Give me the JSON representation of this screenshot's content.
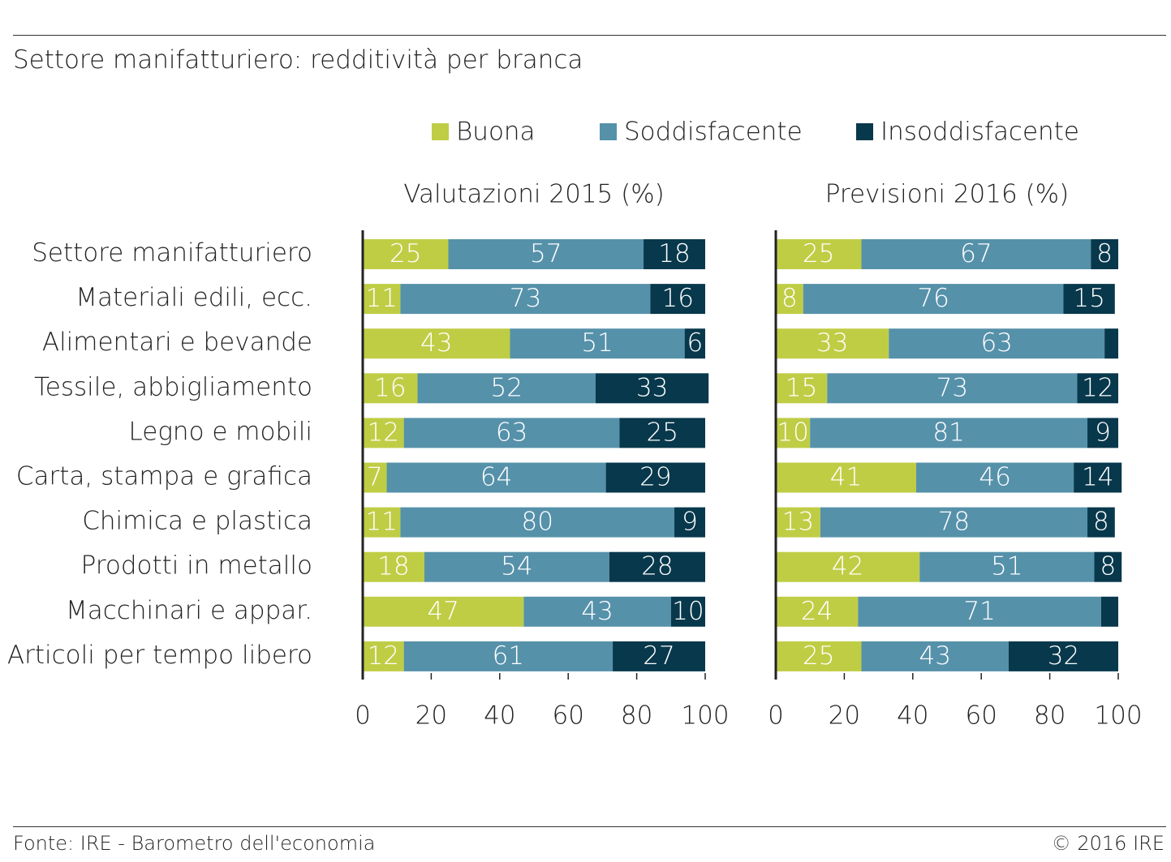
{
  "title": "Settore manifatturiero: redditività per branca",
  "footer": {
    "source": "Fonte: IRE - Barometro dell'economia",
    "copyright": "© 2016 IRE"
  },
  "colors": {
    "Buona": "#bfcd45",
    "Soddisfacente": "#5691aa",
    "Insoddisfacente": "#08384c"
  },
  "chart_data": {
    "type": "bar",
    "orientation": "horizontal",
    "stacked": true,
    "legend": [
      "Buona",
      "Soddisfacente",
      "Insoddisfacente"
    ],
    "legend_position": "top",
    "categories": [
      "Settore manifatturiero",
      "Materiali edili, ecc.",
      "Alimentari e bevande",
      "Tessile, abbigliamento",
      "Legno e mobili",
      "Carta, stampa e grafica",
      "Chimica e plastica",
      "Prodotti in metallo",
      "Macchinari e appar.",
      "Articoli per tempo libero"
    ],
    "panels": [
      {
        "title": "Valutazioni 2015 (%)",
        "xlim": [
          0,
          100
        ],
        "xticks": [
          0,
          20,
          40,
          60,
          80,
          100
        ],
        "series": [
          {
            "name": "Buona",
            "values": [
              25,
              11,
              43,
              16,
              12,
              7,
              11,
              18,
              47,
              12
            ]
          },
          {
            "name": "Soddisfacente",
            "values": [
              57,
              73,
              51,
              52,
              63,
              64,
              80,
              54,
              43,
              61
            ]
          },
          {
            "name": "Insoddisfacente",
            "values": [
              18,
              16,
              6,
              33,
              25,
              29,
              9,
              28,
              10,
              27
            ]
          }
        ]
      },
      {
        "title": "Previsioni 2016 (%)",
        "xlim": [
          0,
          100
        ],
        "xticks": [
          0,
          20,
          40,
          60,
          80,
          100
        ],
        "series": [
          {
            "name": "Buona",
            "values": [
              25,
              8,
              33,
              15,
              10,
              41,
              13,
              42,
              24,
              25
            ]
          },
          {
            "name": "Soddisfacente",
            "values": [
              67,
              76,
              63,
              73,
              81,
              46,
              78,
              51,
              71,
              43
            ]
          },
          {
            "name": "Insoddisfacente",
            "values": [
              8,
              15,
              4,
              12,
              9,
              14,
              8,
              8,
              5,
              32
            ]
          }
        ],
        "unlabeled_values": {
          "Insoddisfacente": [
            2,
            8
          ]
        }
      }
    ]
  }
}
